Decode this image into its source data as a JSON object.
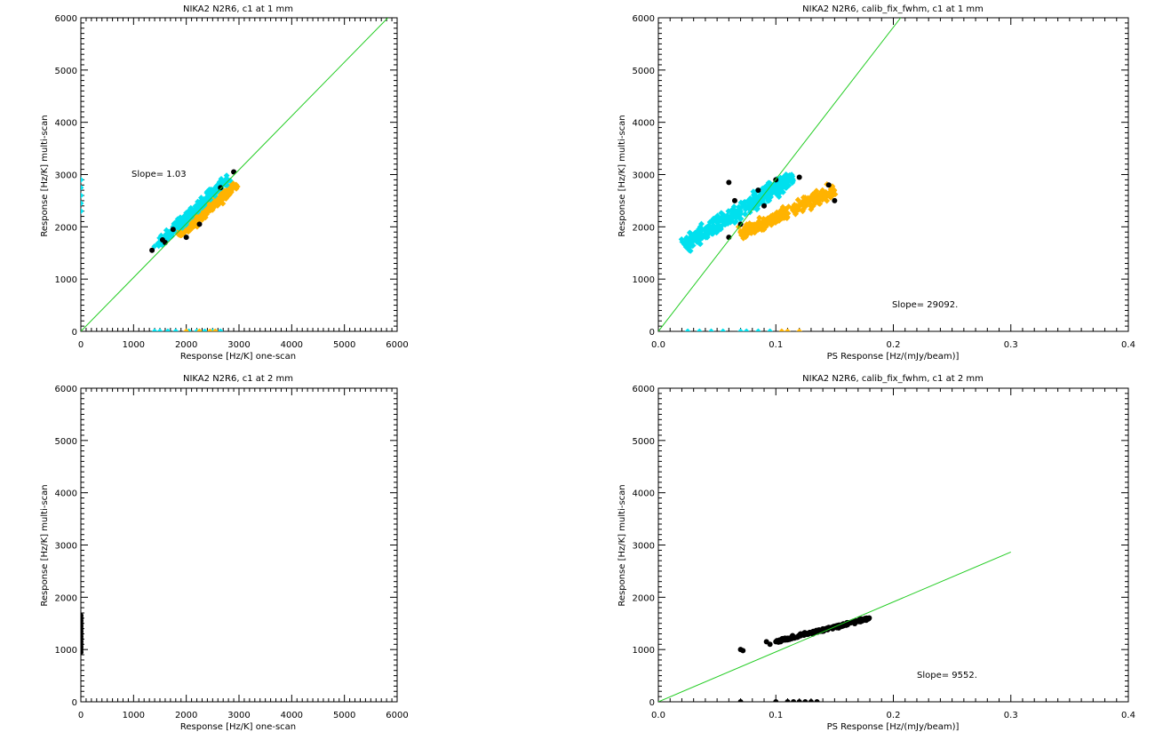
{
  "chart_data": [
    {
      "type": "scatter",
      "title": "NIKA2 N2R6, c1 at 1 mm",
      "xlabel": "Response [Hz/K] one-scan",
      "ylabel": "Response [Hz/K] multi-scan",
      "xlim": [
        0,
        6000
      ],
      "ylim": [
        0,
        6000
      ],
      "xticks": [
        "0",
        "1000",
        "2000",
        "3000",
        "4000",
        "5000",
        "6000"
      ],
      "yticks": [
        "0",
        "1000",
        "2000",
        "3000",
        "4000",
        "5000",
        "6000"
      ],
      "annotation": "Slope=  1.03",
      "fit_line": {
        "slope": 1.03,
        "color": "#22cc22"
      },
      "series": [
        {
          "color": "#ffb300",
          "cluster": {
            "x0": 1850,
            "y0": 1850,
            "x1": 2950,
            "y1": 2800,
            "width": 260,
            "n": 260
          }
        },
        {
          "color": "#00e0ee",
          "cluster": {
            "x0": 1400,
            "y0": 1600,
            "x1": 2800,
            "y1": 2950,
            "width": 230,
            "n": 230
          }
        },
        {
          "color": "#00e0ee",
          "points": [
            [
              0,
              2900
            ],
            [
              0,
              2750
            ],
            [
              0,
              2600
            ],
            [
              0,
              2450
            ],
            [
              0,
              2300
            ],
            [
              1400,
              0
            ],
            [
              1500,
              0
            ],
            [
              1650,
              0
            ],
            [
              1800,
              0
            ],
            [
              2050,
              0
            ],
            [
              2200,
              0
            ],
            [
              2350,
              0
            ],
            [
              2500,
              0
            ],
            [
              2650,
              0
            ]
          ]
        },
        {
          "color": "#ffb300",
          "points": [
            [
              2000,
              0
            ],
            [
              2250,
              0
            ],
            [
              2450,
              0
            ],
            [
              2550,
              0
            ]
          ]
        },
        {
          "color": "#000000",
          "points": [
            [
              1350,
              1550
            ],
            [
              1600,
              1700
            ],
            [
              1550,
              1750
            ],
            [
              2900,
              3050
            ],
            [
              2000,
              1800
            ],
            [
              2250,
              2050
            ],
            [
              1750,
              1950
            ],
            [
              2650,
              2750
            ]
          ]
        }
      ]
    },
    {
      "type": "scatter",
      "title": "NIKA2 N2R6, calib_fix_fwhm, c1 at 1 mm",
      "xlabel": "PS Response [Hz/(mJy/beam)]",
      "ylabel": "Response [Hz/K] multi-scan",
      "xlim": [
        0,
        0.4
      ],
      "ylim": [
        0,
        6000
      ],
      "xticks": [
        "0.0",
        "0.1",
        "0.2",
        "0.3",
        "0.4"
      ],
      "yticks": [
        "0",
        "1000",
        "2000",
        "3000",
        "4000",
        "5000",
        "6000"
      ],
      "annotation": "Slope=  29092.",
      "fit_line": {
        "slope": 29092,
        "color": "#22cc22"
      },
      "series": [
        {
          "color": "#ffb300",
          "cluster": {
            "x0": 0.07,
            "y0": 1850,
            "x1": 0.15,
            "y1": 2700,
            "width": 350,
            "n": 300
          }
        },
        {
          "color": "#00e0ee",
          "cluster": {
            "x0": 0.022,
            "y0": 1650,
            "x1": 0.115,
            "y1": 2950,
            "width": 420,
            "n": 380
          }
        },
        {
          "color": "#00e0ee",
          "points": [
            [
              0.025,
              0
            ],
            [
              0.035,
              0
            ],
            [
              0.045,
              0
            ],
            [
              0.055,
              0
            ],
            [
              0.07,
              0
            ],
            [
              0.075,
              0
            ],
            [
              0.085,
              0
            ],
            [
              0.095,
              0
            ]
          ]
        },
        {
          "color": "#ffb300",
          "points": [
            [
              0.105,
              0
            ],
            [
              0.11,
              0
            ],
            [
              0.12,
              0
            ]
          ]
        },
        {
          "color": "#000000",
          "points": [
            [
              0.06,
              2850
            ],
            [
              0.065,
              2500
            ],
            [
              0.09,
              2400
            ],
            [
              0.1,
              2900
            ],
            [
              0.12,
              2950
            ],
            [
              0.145,
              2800
            ],
            [
              0.15,
              2500
            ],
            [
              0.07,
              2050
            ],
            [
              0.06,
              1800
            ],
            [
              0.085,
              2700
            ]
          ]
        }
      ]
    },
    {
      "type": "scatter",
      "title": "NIKA2 N2R6, c1 at 2 mm",
      "xlabel": "Response [Hz/K] one-scan",
      "ylabel": "Response [Hz/K] multi-scan",
      "xlim": [
        0,
        6000
      ],
      "ylim": [
        0,
        6000
      ],
      "xticks": [
        "0",
        "1000",
        "2000",
        "3000",
        "4000",
        "5000",
        "6000"
      ],
      "yticks": [
        "0",
        "1000",
        "2000",
        "3000",
        "4000",
        "5000",
        "6000"
      ],
      "series": [
        {
          "color": "#000000",
          "points": [
            [
              0,
              950
            ],
            [
              0,
              1000
            ],
            [
              0,
              1050
            ],
            [
              0,
              1100
            ],
            [
              0,
              1150
            ],
            [
              0,
              1200
            ],
            [
              0,
              1250
            ],
            [
              0,
              1300
            ],
            [
              0,
              1350
            ],
            [
              0,
              1400
            ],
            [
              0,
              1450
            ],
            [
              0,
              1500
            ],
            [
              0,
              1550
            ],
            [
              0,
              1600
            ],
            [
              0,
              1650
            ]
          ]
        }
      ]
    },
    {
      "type": "scatter",
      "title": "NIKA2 N2R6, calib_fix_fwhm, c1 at 2 mm",
      "xlabel": "PS Response [Hz/(mJy/beam)]",
      "ylabel": "Response [Hz/K] multi-scan",
      "xlim": [
        0,
        0.4
      ],
      "ylim": [
        0,
        6000
      ],
      "xticks": [
        "0.0",
        "0.1",
        "0.2",
        "0.3",
        "0.4"
      ],
      "yticks": [
        "0",
        "1000",
        "2000",
        "3000",
        "4000",
        "5000",
        "6000"
      ],
      "annotation": "Slope=  9552.",
      "fit_line": {
        "slope": 9552,
        "x_end": 0.3,
        "color": "#22cc22"
      },
      "series": [
        {
          "color": "#000000",
          "cluster": {
            "x0": 0.1,
            "y0": 1150,
            "x1": 0.18,
            "y1": 1600,
            "width": 90,
            "n": 170
          }
        },
        {
          "color": "#000000",
          "points": [
            [
              0.07,
              1000
            ],
            [
              0.072,
              980
            ],
            [
              0.092,
              1150
            ],
            [
              0.095,
              1100
            ],
            [
              0.1,
              1150
            ],
            [
              0.07,
              0
            ],
            [
              0.1,
              0
            ],
            [
              0.11,
              0
            ],
            [
              0.115,
              0
            ],
            [
              0.12,
              0
            ],
            [
              0.125,
              0
            ],
            [
              0.13,
              0
            ],
            [
              0.135,
              0
            ]
          ]
        }
      ]
    }
  ]
}
